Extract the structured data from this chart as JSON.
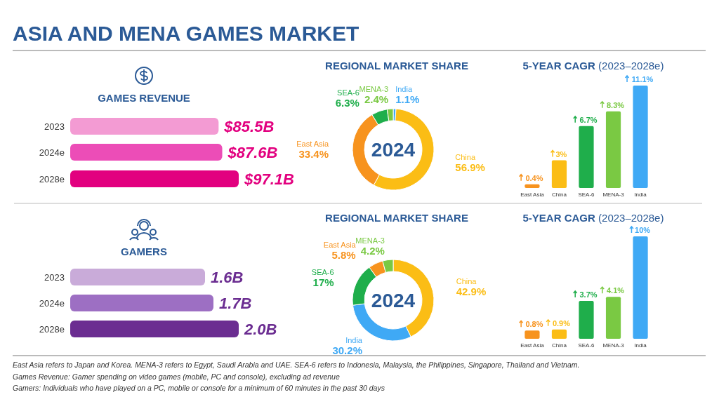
{
  "chart_data": [
    {
      "type": "other",
      "title": "ASIA AND MENA GAMES MARKET",
      "annotations": [
        "East Asia refers to Japan and Korea. MENA-3 refers to Egypt, Saudi Arabia and UAE. SEA-6 refers to Indonesia, Malaysia, the Philippines, Singapore, Thailand and Vietnam.",
        "Games Revenue: Gamer spending on video games (mobile, PC and console), excluding ad revenue",
        "Gamers: Individuals who have played on a PC, mobile or console for a minimum of 60 minutes in the past 30 days"
      ]
    },
    {
      "type": "bar",
      "orientation": "horizontal",
      "title": "GAMES REVENUE",
      "categories": [
        "2023",
        "2024e",
        "2028e"
      ],
      "values": [
        85.5,
        87.6,
        97.1
      ],
      "colors": [
        "#f39bd3",
        "#ec4db7",
        "#e2007f"
      ],
      "value_labels": [
        "$85.5B",
        "$87.6B",
        "$97.1B"
      ]
    },
    {
      "type": "donut",
      "title": "REGIONAL MARKET SHARE",
      "annotations": [
        "2024"
      ],
      "categories": [
        "India",
        "China",
        "East Asia",
        "SEA-6",
        "MENA-3"
      ],
      "values": [
        1.1,
        56.9,
        33.4,
        6.3,
        2.4
      ],
      "colors": [
        "#3fa9f5",
        "#fbbd15",
        "#f7931e",
        "#1fae4b",
        "#7ac943"
      ],
      "value_labels": [
        "1.1%",
        "56.9%",
        "33.4%",
        "6.3%",
        "2.4%"
      ]
    },
    {
      "type": "bar",
      "title": "5-YEAR CAGR",
      "subtitle": "(2023–2028e)",
      "categories": [
        "East Asia",
        "China",
        "SEA-6",
        "MENA-3",
        "India"
      ],
      "values": [
        0.4,
        3,
        6.7,
        8.3,
        11.1
      ],
      "colors": [
        "#f7931e",
        "#fbbd15",
        "#1fae4b",
        "#7ac943",
        "#3fa9f5"
      ],
      "value_labels": [
        "0.4%",
        "3%",
        "6.7%",
        "8.3%",
        "11.1%"
      ]
    },
    {
      "type": "bar",
      "orientation": "horizontal",
      "title": "GAMERS",
      "categories": [
        "2023",
        "2024e",
        "2028e"
      ],
      "values": [
        1.6,
        1.7,
        2.0
      ],
      "colors": [
        "#c9abd9",
        "#9d6fc3",
        "#6b2d91"
      ],
      "value_labels": [
        "1.6B",
        "1.7B",
        "2.0B"
      ]
    },
    {
      "type": "donut",
      "title": "REGIONAL MARKET SHARE",
      "annotations": [
        "2024"
      ],
      "categories": [
        "China",
        "India",
        "SEA-6",
        "East Asia",
        "MENA-3"
      ],
      "values": [
        42.9,
        30.2,
        17,
        5.8,
        4.2
      ],
      "colors": [
        "#fbbd15",
        "#3fa9f5",
        "#1fae4b",
        "#f7931e",
        "#7ac943"
      ],
      "value_labels": [
        "42.9%",
        "30.2%",
        "17%",
        "5.8%",
        "4.2%"
      ]
    },
    {
      "type": "bar",
      "title": "5-YEAR CAGR",
      "subtitle": "(2023–2028e)",
      "categories": [
        "East Asia",
        "China",
        "SEA-6",
        "MENA-3",
        "India"
      ],
      "values": [
        0.8,
        0.9,
        3.7,
        4.1,
        10
      ],
      "colors": [
        "#f7931e",
        "#fbbd15",
        "#1fae4b",
        "#7ac943",
        "#3fa9f5"
      ],
      "value_labels": [
        "0.8%",
        "0.9%",
        "3.7%",
        "4.1%",
        "10%"
      ]
    }
  ]
}
